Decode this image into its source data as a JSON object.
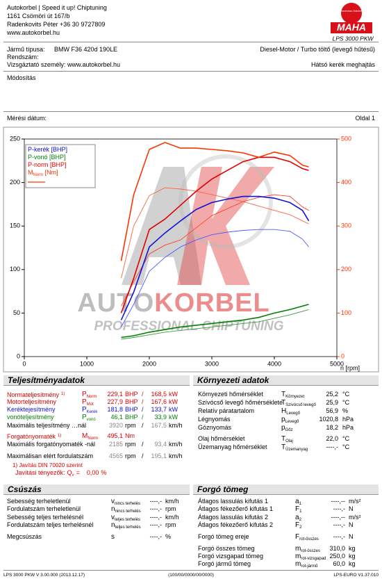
{
  "header": {
    "company": [
      "Autokorbel | Speed it up! Chiptuning",
      "1161 Csömöri út 167/b",
      "Radenkovits Péter +36 30 9727809",
      "www.autokorbel.hu"
    ],
    "logo_ring": "Maschinenbau Haldenwang",
    "logo_text": "MAHA",
    "product": "LPS 3000 PKW"
  },
  "vehicle": {
    "type_label": "Jármű típusa:",
    "type_value": "BMW F36 420d 190LE",
    "engine": "Diesel-Motor / Turbo töltő (levegő hűtésű)",
    "plate_label": "Rendszám:",
    "examiner_label": "Vizsgáztató személy:",
    "examiner_value": "www.autokorbel.hu",
    "drive": "Hátsó kerék meghajtás",
    "modification_label": "Módosítás",
    "date_label": "Mérési dátum:",
    "page": "Oldal 1"
  },
  "chart_data": {
    "type": "line",
    "xlabel": "n [rpm]",
    "watermark": [
      "AUTO",
      "KORBEL",
      "PROFESSIONAL CHIPTUNING"
    ],
    "xlim": [
      0,
      5000
    ],
    "xticks": [
      0,
      1000,
      2000,
      3000,
      4000,
      5000
    ],
    "ylim": [
      0,
      250
    ],
    "yticks": [
      0,
      50,
      100,
      150,
      200,
      250
    ],
    "y2lim": [
      0,
      500
    ],
    "y2ticks": [
      0,
      100,
      200,
      300,
      400,
      500
    ],
    "y2color": "#ff3300",
    "x": [
      1550,
      1750,
      2000,
      2250,
      2500,
      2750,
      3000,
      3250,
      3500,
      3750,
      4000,
      4250,
      4450,
      4550
    ],
    "series": [
      {
        "name": "P-kerék [BHP]",
        "color": "#1010d8",
        "values": [
          42,
          74,
          126,
          142,
          156,
          169,
          177,
          181,
          184,
          184,
          182,
          177,
          168,
          156
        ]
      },
      {
        "name": "P-vonó [BHP]",
        "color": "#008000",
        "values": [
          22,
          24,
          28,
          31,
          34,
          36,
          38,
          40,
          42,
          45,
          50,
          54,
          58,
          60
        ]
      },
      {
        "name": "P-norm [BHP]",
        "color": "#e00000",
        "values": [
          50,
          90,
          146,
          158,
          174,
          190,
          204,
          214,
          224,
          229,
          229,
          224,
          216,
          214
        ]
      },
      {
        "name": "M",
        "name_sub": "Norm",
        "name_suffix": " [Nm]",
        "color": "#ff3300",
        "axis": "y2",
        "values": [
          220,
          372,
          476,
          492,
          479,
          479,
          476,
          473,
          468,
          458,
          470,
          462,
          440,
          436
        ]
      }
    ],
    "compare": [
      {
        "color": "#4a5cff",
        "values": [
          34,
          60,
          98,
          114,
          126,
          134,
          140,
          143,
          145,
          146,
          146,
          144,
          135,
          126
        ]
      },
      {
        "color": "#3a9a3a",
        "values": [
          20,
          22,
          25,
          28,
          30,
          32,
          34,
          36,
          38,
          40,
          44,
          48,
          52,
          54
        ]
      },
      {
        "color": "#ff4020",
        "values": [
          58,
          86,
          118,
          128,
          134,
          148,
          162,
          170,
          178,
          183,
          186,
          184,
          172,
          168
        ]
      },
      {
        "color": "#ff6040",
        "axis": "y2",
        "values": [
          180,
          300,
          370,
          388,
          385,
          380,
          372,
          364,
          356,
          346,
          336,
          326,
          312,
          305
        ]
      }
    ]
  },
  "sections": {
    "performance": {
      "title": "Teljesítményadatok",
      "rows": [
        {
          "label": "Normateljesítmény",
          "note": "1)",
          "sym": "P",
          "sub": "Norm",
          "v1": "229,1",
          "u1": "BHP",
          "sep": "/",
          "v2": "168,5",
          "u2": "kW",
          "color": "#e00000"
        },
        {
          "label": "Motorteljesítmény",
          "sym": "P",
          "sub": "Mot",
          "v1": "227,9",
          "u1": "BHP",
          "sep": "/",
          "v2": "167,6",
          "u2": "kW",
          "color": "#e00000"
        },
        {
          "label": "Keréktejesítmény",
          "sym": "P",
          "sub": "Kerék",
          "v1": "181,8",
          "u1": "BHP",
          "sep": "/",
          "v2": "133,7",
          "u2": "kW",
          "color": "#1010d8"
        },
        {
          "label": "vonóteljesítmény",
          "sym": "P",
          "sub": "vonó",
          "v1": "46,1",
          "u1": "BHP",
          "sep": "/",
          "v2": "33,9",
          "u2": "kW",
          "color": "#008000"
        },
        {
          "label": "Maximális teljesítmény …nál",
          "v1": "3920",
          "u1": "rpm",
          "sep": "/",
          "v2": "167,5",
          "u2": "km/h",
          "value_color": "#888"
        },
        {
          "label": "Forgatónyomaték",
          "note": "1)",
          "sym": "M",
          "sub": "Norm",
          "v1": "495,1",
          "u1": "Nm",
          "color": "#e00000"
        },
        {
          "label": "Maximális forgatónyomaték -nál",
          "v1": "2185",
          "u1": "rpm",
          "sep": "/",
          "v2": "93,4",
          "u2": "km/h",
          "value_color": "#888"
        },
        {
          "label": "Maximálisan elért fordulatszám",
          "v1": "4565",
          "u1": "rpm",
          "sep": "/",
          "v2": "195,1",
          "u2": "km/h",
          "value_color": "#888"
        }
      ],
      "correction": {
        "note": "1) Javítás DIN 70020 szerint",
        "label": "Javítási tényezők:",
        "sym": "Q",
        "sub": "v",
        "eq": "=",
        "value": "0,00",
        "unit": "%",
        "color": "#e00000"
      }
    },
    "environment": {
      "title": "Környezeti adatok",
      "rows": [
        {
          "label": "Környezeti hőmérséklet",
          "sym": "T",
          "sub": "Környezet",
          "v1": "25,2",
          "u1": "°C"
        },
        {
          "label": "Szívócső levegő hőmérséklete",
          "sym": "T",
          "sub": "Szívócső levegő",
          "v1": "25,9",
          "u1": "°C"
        },
        {
          "label": "Relatív páratartalom",
          "sym": "H",
          "sub": "Levegő",
          "v1": "56,9",
          "u1": "%"
        },
        {
          "label": "Légnyomás",
          "sym": "p",
          "sub": "Levegő",
          "v1": "1020,8",
          "u1": "hPa"
        },
        {
          "label": "Góznyomás",
          "sym": "p",
          "sub": "Gőz",
          "v1": "18,2",
          "u1": "hPa"
        },
        {
          "label": "Olaj hőmérséklet",
          "sym": "T",
          "sub": "Olaj",
          "v1": "22,0",
          "u1": "°C"
        },
        {
          "label": "Üzemanyag hőmérséklet",
          "sym": "T",
          "sub": "Üzemanyag",
          "v1": "----,-",
          "u1": "°C"
        }
      ]
    },
    "slip": {
      "title": "Csúszás",
      "rows": [
        {
          "label": "Sebesség terheletlenül",
          "sym": "v",
          "sub": "nincs terhelés",
          "v1": "----,-",
          "u1": "km/h"
        },
        {
          "label": "Fordulatszám terheletlenül",
          "sym": "n",
          "sub": "nincs terhelés",
          "v1": "----,-",
          "u1": "rpm"
        },
        {
          "label": "Sebesség teljes terhelésnél",
          "sym": "v",
          "sub": "teljes terhelés",
          "v1": "----,-",
          "u1": "km/h"
        },
        {
          "label": "Fordulatszám teljes terhelésnél",
          "sym": "n",
          "sub": "teljes terhelés",
          "v1": "----,-",
          "u1": "rpm"
        },
        {
          "label": "Megcsúszás",
          "sym": "s",
          "v1": "----,-",
          "u1": "%"
        }
      ]
    },
    "mass": {
      "title": "Forgó tömeg",
      "rows": [
        {
          "label": "Átlagos lassulás kifutás 1",
          "sym": "a",
          "sub": "1",
          "v1": "----,--",
          "u1": "m/s²"
        },
        {
          "label": "Átlagos fékezőerő kifutás 1",
          "sym": "F",
          "sub": "1",
          "v1": "----,-",
          "u1": "N"
        },
        {
          "label": "Átlagos lassulás kifutás 2",
          "sym": "a",
          "sub": "2",
          "v1": "----,--",
          "u1": "m/s²"
        },
        {
          "label": "Átlagos fékezőerő kifutás 2",
          "sym": "F",
          "sub": "2",
          "v1": "----,-",
          "u1": "N"
        },
        {
          "label": "Forgó tömeg ereje",
          "sym": "F",
          "sub": "rot-összes",
          "v1": "----,-",
          "u1": "N"
        },
        {
          "label": "Forgó összes tömeg",
          "sym": "m",
          "sub": "rot-összes",
          "v1": "310,0",
          "u1": "kg"
        },
        {
          "label": "Forgó vizsgapad tömeg",
          "sym": "m",
          "sub": "rot-vizsgapad",
          "v1": "250,0",
          "u1": "kg"
        },
        {
          "label": "Forgó jármű tömeg",
          "sym": "m",
          "sub": "rot-jármű",
          "v1": "60,0",
          "u1": "kg"
        }
      ]
    }
  },
  "footer": {
    "left": "LPS 3000 PKW V 3.00.000 (2013.12.17)",
    "center": "(100/00/0000/00/0000)",
    "right": "LPS-EURO V1.37.010"
  }
}
